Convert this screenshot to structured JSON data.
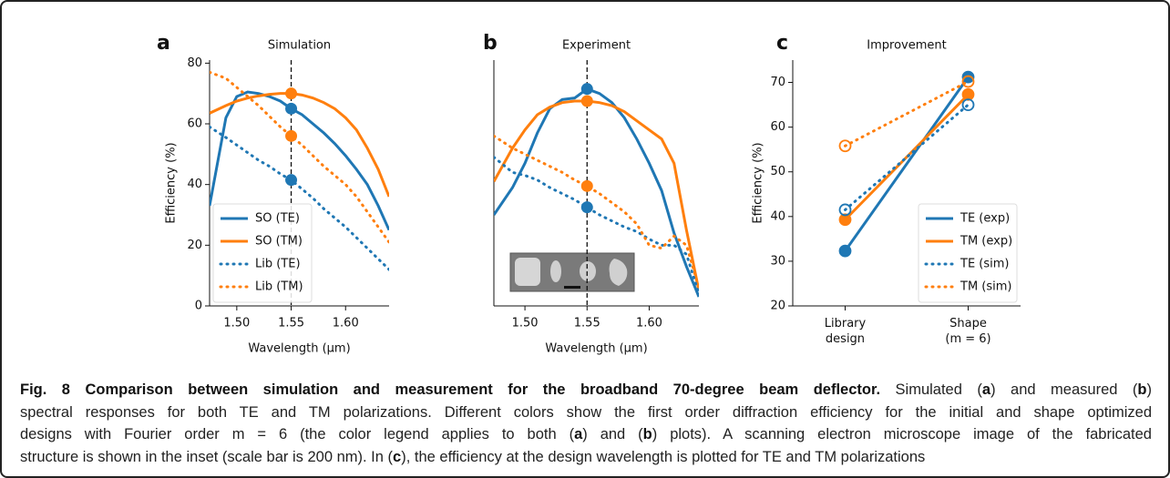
{
  "chart_data": [
    {
      "type": "line",
      "panel_label": "a",
      "title": "Simulation",
      "xlabel": "Wavelength (μm)",
      "ylabel": "Efficiency (%)",
      "x": [
        1.475,
        1.49,
        1.5,
        1.51,
        1.52,
        1.53,
        1.54,
        1.55,
        1.56,
        1.57,
        1.58,
        1.59,
        1.6,
        1.61,
        1.62,
        1.63,
        1.64
      ],
      "series": [
        {
          "name": "SO (TE)",
          "color": "#1f77b4",
          "style": "solid",
          "values": [
            33,
            62,
            69,
            70.5,
            70,
            69,
            67.5,
            65,
            63,
            60,
            57,
            53.5,
            49.5,
            45,
            40,
            33,
            25
          ]
        },
        {
          "name": "SO (TM)",
          "color": "#ff7f0e",
          "style": "solid",
          "values": [
            63.5,
            66,
            67.5,
            68.5,
            69.2,
            69.7,
            70,
            70,
            69.5,
            68.5,
            67,
            65,
            62,
            58,
            52,
            45,
            36
          ]
        },
        {
          "name": "Lib (TE)",
          "color": "#1f77b4",
          "style": "dotted",
          "values": [
            59,
            55.5,
            53,
            50.5,
            48,
            46,
            43.5,
            41.5,
            38.5,
            35.5,
            32,
            29,
            26,
            22.5,
            19,
            15.5,
            12
          ]
        },
        {
          "name": "Lib (TM)",
          "color": "#ff7f0e",
          "style": "dotted",
          "values": [
            77,
            75,
            72,
            69,
            66,
            62.5,
            59,
            56,
            53,
            49.5,
            46,
            43,
            40,
            36,
            31,
            26,
            21
          ]
        }
      ],
      "vline": 1.55,
      "legend": "lower left",
      "xlim": [
        1.475,
        1.64
      ],
      "ylim": [
        0,
        81
      ],
      "xticks": [
        {
          "value": 1.5,
          "label": "1.50"
        },
        {
          "value": 1.55,
          "label": "1.55"
        },
        {
          "value": 1.6,
          "label": "1.60"
        }
      ],
      "yticks": [
        0,
        20,
        40,
        60,
        80
      ]
    },
    {
      "type": "line",
      "panel_label": "b",
      "title": "Experiment",
      "xlabel": "Wavelength (μm)",
      "x": [
        1.475,
        1.49,
        1.5,
        1.51,
        1.52,
        1.53,
        1.54,
        1.55,
        1.56,
        1.57,
        1.58,
        1.59,
        1.6,
        1.61,
        1.62,
        1.63,
        1.64
      ],
      "series": [
        {
          "color": "#1f77b4",
          "style": "solid",
          "values": [
            30,
            39,
            47,
            57,
            65,
            68,
            68.5,
            71.5,
            70,
            67,
            62,
            55,
            47,
            38,
            24,
            13,
            3
          ]
        },
        {
          "color": "#ff7f0e",
          "style": "solid",
          "values": [
            41,
            52,
            58,
            63,
            65.5,
            67,
            67.5,
            67.5,
            67,
            66,
            64,
            61,
            58,
            55,
            47,
            25,
            5
          ]
        },
        {
          "color": "#1f77b4",
          "style": "dotted",
          "values": [
            49,
            44,
            43,
            41.5,
            39,
            37,
            35,
            32.5,
            30,
            28,
            26,
            24.5,
            22,
            20,
            20,
            17,
            4
          ]
        },
        {
          "color": "#ff7f0e",
          "style": "dotted",
          "values": [
            56,
            52,
            50,
            48,
            46,
            44,
            41.5,
            39.5,
            37,
            34,
            31,
            27,
            20,
            19,
            23,
            20,
            6
          ]
        }
      ],
      "vline": 1.55,
      "xlim": [
        1.475,
        1.64
      ],
      "ylim": [
        0,
        81
      ],
      "xticks": [
        {
          "value": 1.5,
          "label": "1.50"
        },
        {
          "value": 1.55,
          "label": "1.55"
        },
        {
          "value": 1.6,
          "label": "1.60"
        }
      ]
    },
    {
      "type": "line",
      "panel_label": "c",
      "title": "Improvement",
      "ylabel": "Efficiency (%)",
      "categories": [
        "Library design",
        "Shape (m = 6)"
      ],
      "series": [
        {
          "name": "TE (exp)",
          "color": "#1f77b4",
          "style": "solid",
          "marker": "filled",
          "values": [
            32.3,
            71.2
          ]
        },
        {
          "name": "TM (exp)",
          "color": "#ff7f0e",
          "style": "solid",
          "marker": "filled",
          "values": [
            39.3,
            67.3
          ]
        },
        {
          "name": "TE (sim)",
          "color": "#1f77b4",
          "style": "dotted",
          "marker": "open",
          "values": [
            41.5,
            65
          ]
        },
        {
          "name": "TM (sim)",
          "color": "#ff7f0e",
          "style": "dotted",
          "marker": "open",
          "values": [
            55.8,
            70.2
          ]
        }
      ],
      "legend": "lower right",
      "ylim": [
        20,
        75
      ],
      "yticks": [
        20,
        30,
        40,
        50,
        60,
        70
      ]
    }
  ],
  "caption": {
    "lines": [
      [
        {
          "bold": "Fig. 8 Comparison between simulation and measurement for the broadband 70-degree beam deflector."
        },
        " Simulated (",
        {
          "bold": "a"
        },
        ") and measured (",
        {
          "bold": "b"
        },
        ")"
      ],
      [
        "spectral responses for both TE and TM polarizations. Different colors show the first order diffraction efficiency for the initial and shape optimized"
      ],
      [
        "designs with Fourier order m = 6 (the color legend applies to both (",
        {
          "bold": "a"
        },
        ") and (",
        {
          "bold": "b"
        },
        ") plots). A scanning electron microscope image of the fabricated"
      ],
      [
        "structure is shown in the inset (scale bar is 200 nm). In (",
        {
          "bold": "c"
        },
        "), the efficiency at the design wavelength is plotted for TE and TM polarizations"
      ]
    ]
  }
}
